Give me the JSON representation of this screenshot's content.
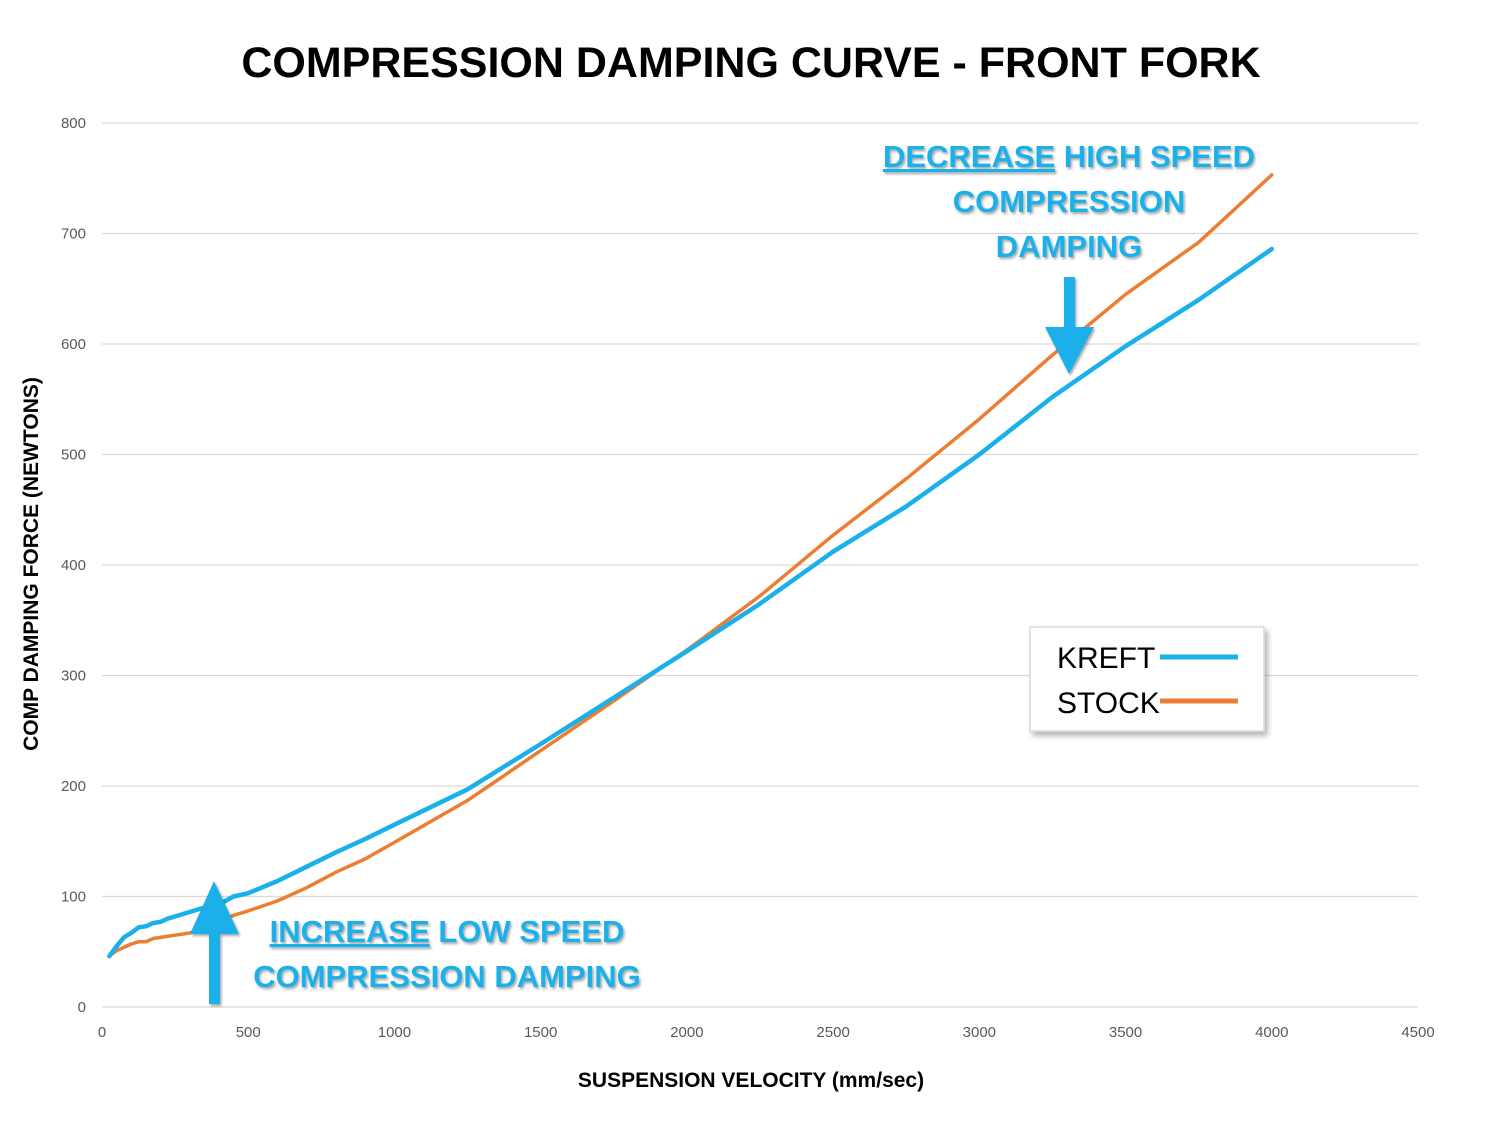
{
  "chart_data": {
    "type": "line",
    "title": "COMPRESSION DAMPING CURVE - FRONT FORK",
    "xlabel": "SUSPENSION VELOCITY (mm/sec)",
    "ylabel": "COMP DAMPING FORCE (NEWTONS)",
    "xlim": [
      0,
      4500
    ],
    "ylim": [
      0,
      800
    ],
    "x_ticks": [
      "0",
      "500",
      "1000",
      "1500",
      "2000",
      "2500",
      "3000",
      "3500",
      "4000",
      "4500"
    ],
    "y_ticks": [
      "0",
      "100",
      "200",
      "300",
      "400",
      "500",
      "600",
      "700",
      "800"
    ],
    "grid": "horizontal",
    "legend_position": "right",
    "series": [
      {
        "name": "KREFT",
        "color": "#1ab0ea",
        "points": [
          [
            25,
            46
          ],
          [
            50,
            55
          ],
          [
            75,
            63
          ],
          [
            100,
            67
          ],
          [
            125,
            72
          ],
          [
            150,
            73
          ],
          [
            175,
            76
          ],
          [
            200,
            77
          ],
          [
            225,
            80
          ],
          [
            250,
            82
          ],
          [
            300,
            86
          ],
          [
            350,
            90
          ],
          [
            400,
            93
          ],
          [
            450,
            100
          ],
          [
            500,
            103
          ],
          [
            600,
            114
          ],
          [
            700,
            127
          ],
          [
            800,
            140
          ],
          [
            900,
            152
          ],
          [
            1000,
            165
          ],
          [
            1250,
            197
          ],
          [
            1500,
            238
          ],
          [
            1750,
            280
          ],
          [
            2000,
            322
          ],
          [
            2250,
            365
          ],
          [
            2500,
            412
          ],
          [
            2750,
            453
          ],
          [
            3000,
            500
          ],
          [
            3250,
            552
          ],
          [
            3500,
            598
          ],
          [
            3750,
            640
          ],
          [
            4000,
            686
          ]
        ]
      },
      {
        "name": "STOCK",
        "color": "#ed7d31",
        "points": [
          [
            25,
            46
          ],
          [
            50,
            51
          ],
          [
            75,
            54
          ],
          [
            100,
            57
          ],
          [
            125,
            59
          ],
          [
            150,
            59
          ],
          [
            175,
            62
          ],
          [
            200,
            63
          ],
          [
            250,
            65
          ],
          [
            300,
            67
          ],
          [
            350,
            72
          ],
          [
            400,
            77
          ],
          [
            450,
            83
          ],
          [
            500,
            87
          ],
          [
            600,
            96
          ],
          [
            700,
            108
          ],
          [
            800,
            122
          ],
          [
            900,
            134
          ],
          [
            1000,
            149
          ],
          [
            1250,
            187
          ],
          [
            1500,
            232
          ],
          [
            1750,
            277
          ],
          [
            2000,
            323
          ],
          [
            2250,
            372
          ],
          [
            2500,
            427
          ],
          [
            2750,
            478
          ],
          [
            3000,
            532
          ],
          [
            3250,
            590
          ],
          [
            3500,
            645
          ],
          [
            3750,
            692
          ],
          [
            4000,
            753
          ]
        ]
      }
    ],
    "annotations": [
      {
        "underlined": "DECREASE",
        "text": " HIGH SPEED",
        "lines": [
          "COMPRESSION",
          "DAMPING"
        ],
        "arrow": "down",
        "color": "#1ab0ea"
      },
      {
        "underlined": "INCREASE",
        "text": " LOW SPEED",
        "lines": [
          "COMPRESSION DAMPING"
        ],
        "arrow": "up",
        "color": "#1ab0ea"
      }
    ]
  }
}
